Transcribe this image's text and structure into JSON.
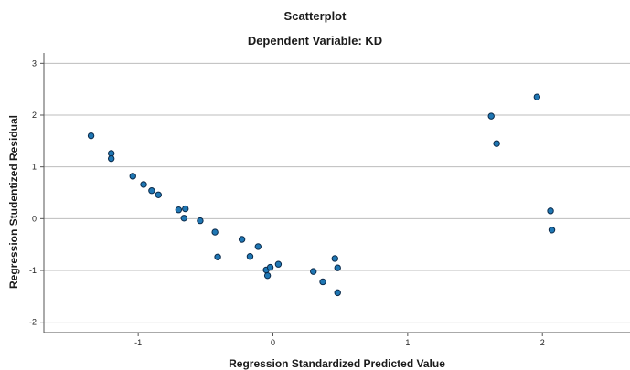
{
  "chart_data": {
    "type": "scatter",
    "title": "Scatterplot",
    "subtitle": "Dependent Variable: KD",
    "xlabel": "Regression Standardized Predicted Value",
    "ylabel": "Regression Studentized Residual",
    "xlim": [
      -1.7,
      2.65
    ],
    "ylim": [
      -2.2,
      3.2
    ],
    "xticks": [
      -1,
      0,
      1,
      2
    ],
    "xtick_labels": [
      "-1",
      "0",
      "1",
      "2"
    ],
    "yticks": [
      -2,
      -1,
      0,
      1,
      2,
      3
    ],
    "ytick_labels": [
      "-2",
      "-1",
      "0",
      "1",
      "2",
      "3"
    ],
    "grid": "horizontal",
    "legend": "none",
    "marker_fill": "#1f77b4",
    "marker_edge": "#0b2a4a",
    "points": [
      {
        "x": -1.35,
        "y": 1.6
      },
      {
        "x": -1.2,
        "y": 1.26
      },
      {
        "x": -1.2,
        "y": 1.16
      },
      {
        "x": -1.04,
        "y": 0.82
      },
      {
        "x": -0.96,
        "y": 0.66
      },
      {
        "x": -0.9,
        "y": 0.54
      },
      {
        "x": -0.85,
        "y": 0.46
      },
      {
        "x": -0.7,
        "y": 0.17
      },
      {
        "x": -0.65,
        "y": 0.19
      },
      {
        "x": -0.66,
        "y": 0.01
      },
      {
        "x": -0.54,
        "y": -0.04
      },
      {
        "x": -0.43,
        "y": -0.26
      },
      {
        "x": -0.41,
        "y": -0.74
      },
      {
        "x": -0.23,
        "y": -0.4
      },
      {
        "x": -0.17,
        "y": -0.73
      },
      {
        "x": -0.11,
        "y": -0.54
      },
      {
        "x": -0.05,
        "y": -0.99
      },
      {
        "x": -0.04,
        "y": -1.1
      },
      {
        "x": -0.02,
        "y": -0.94
      },
      {
        "x": 0.04,
        "y": -0.88
      },
      {
        "x": 0.3,
        "y": -1.02
      },
      {
        "x": 0.37,
        "y": -1.22
      },
      {
        "x": 0.46,
        "y": -0.77
      },
      {
        "x": 0.48,
        "y": -0.95
      },
      {
        "x": 0.48,
        "y": -1.43
      },
      {
        "x": 1.62,
        "y": 1.98
      },
      {
        "x": 1.66,
        "y": 1.45
      },
      {
        "x": 1.96,
        "y": 2.35
      },
      {
        "x": 2.06,
        "y": 0.15
      },
      {
        "x": 2.07,
        "y": -0.22
      }
    ]
  }
}
